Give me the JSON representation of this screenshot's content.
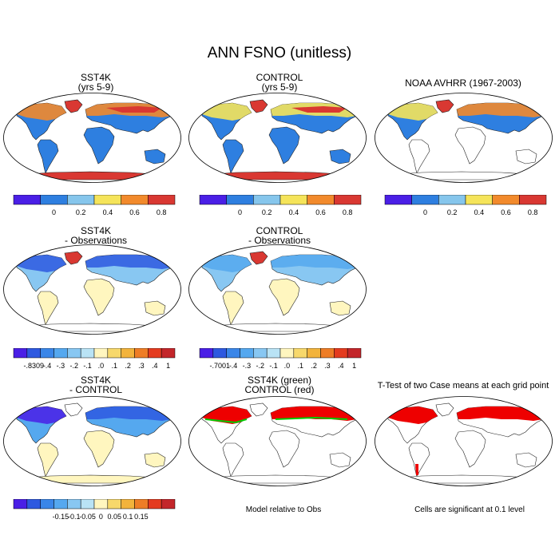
{
  "title": "ANN FSNO (unitless)",
  "panels": [
    {
      "id": "p1",
      "title": [
        "SST4K",
        "(yrs 5-9)"
      ]
    },
    {
      "id": "p2",
      "title": [
        "CONTROL",
        "(yrs 5-9)"
      ]
    },
    {
      "id": "p3",
      "title": [
        "NOAA AVHRR (1967-2003)"
      ]
    },
    {
      "id": "p4",
      "title": [
        "SST4K",
        "- Observations"
      ]
    },
    {
      "id": "p5",
      "title": [
        "CONTROL",
        "- Observations"
      ]
    },
    {
      "id": "p7",
      "title": [
        "SST4K",
        "- CONTROL"
      ]
    },
    {
      "id": "p8",
      "title": [
        "SST4K (green)",
        "CONTROL (red)"
      ]
    },
    {
      "id": "p9",
      "title": [
        "T-Test of two Case means at each grid point"
      ]
    }
  ],
  "notes": {
    "model_relative": "Model relative to Obs",
    "cells_significant": "Cells are significant at 0.1 level"
  },
  "colorbars": {
    "field": {
      "colors": [
        "#4a1fe6",
        "#2e7fe0",
        "#86c6ec",
        "#f5e45a",
        "#f28a2c",
        "#d93832"
      ],
      "labels": [
        "0",
        "0.2",
        "0.4",
        "0.6",
        "0.8"
      ]
    },
    "diff1": {
      "colors": [
        "#4a1fe6",
        "#2e59e0",
        "#3a86e8",
        "#55a8ef",
        "#88c7f2",
        "#b9e3f5",
        "#fff6bf",
        "#f7d86b",
        "#f2b33c",
        "#ee7d26",
        "#e43b1f",
        "#c3262a"
      ],
      "labels": [
        "-.8309",
        "-.4",
        "-.3",
        "-.2",
        "-.1",
        ".0",
        ".1",
        ".2",
        ".3",
        ".4",
        "1"
      ]
    },
    "diff2": {
      "colors": [
        "#4a1fe6",
        "#2e59e0",
        "#3a86e8",
        "#55a8ef",
        "#88c7f2",
        "#b9e3f5",
        "#fff6bf",
        "#f7d86b",
        "#f2b33c",
        "#ee7d26",
        "#e43b1f",
        "#c3262a"
      ],
      "labels": [
        "-.7001",
        "-.4",
        "-.3",
        "-.2",
        "-.1",
        ".0",
        ".1",
        ".2",
        ".3",
        ".4",
        "1"
      ]
    },
    "diff3": {
      "colors": [
        "#4a1fe6",
        "#2e59e0",
        "#3a86e8",
        "#55a8ef",
        "#88c7f2",
        "#b9e3f5",
        "#fff6bf",
        "#f7d86b",
        "#f2b33c",
        "#ee7d26",
        "#e43b1f",
        "#c3262a"
      ],
      "labels": [
        "-0.15",
        "-0.1",
        "-0.05",
        "0",
        "0.05",
        "0.1",
        "0.15"
      ]
    }
  }
}
